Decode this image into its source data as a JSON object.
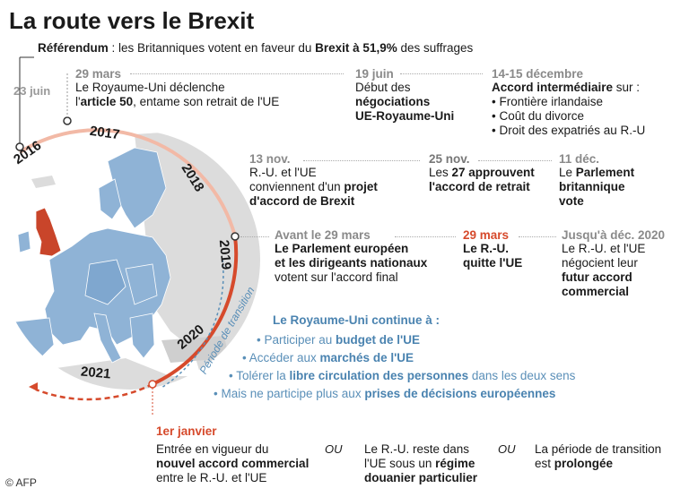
{
  "title": "La route vers le Brexit",
  "referendum": {
    "label": "Référendum",
    "text1": " : les Britanniques votent en faveur du ",
    "text2": "Brexit à 51,9%",
    "text3": " des suffrages",
    "date": "23 juin"
  },
  "years": [
    "2016",
    "2017",
    "2018",
    "2019",
    "2020",
    "2021"
  ],
  "transition_label": "Période de transition",
  "events_row1": [
    {
      "date": "29 mars",
      "line1": "Le Royaume-Uni déclenche",
      "line2_pre": "l'",
      "line2_bold": "article 50",
      "line2_post": ", entame son retrait de l'UE"
    },
    {
      "date": "19 juin",
      "line1": "Début des",
      "line2": "négociations",
      "line3": "UE-Royaume-Uni"
    },
    {
      "date": "14-15 décembre",
      "line1_bold": "Accord intermédiaire",
      "line1_post": " sur :",
      "bullets": [
        "Frontière irlandaise",
        "Coût du divorce",
        "Droit des expatriés au R.-U"
      ]
    }
  ],
  "events_row2": [
    {
      "date": "13 nov.",
      "line1": "R.-U. et l'UE",
      "line2_pre": "conviennent d'un ",
      "line2_bold": "projet",
      "line3": "d'accord de Brexit"
    },
    {
      "date": "25 nov.",
      "line1_pre": "Les ",
      "line1_bold": "27 approuvent",
      "line2": "l'accord de retrait"
    },
    {
      "date": "11 déc.",
      "line1_pre": "Le ",
      "line1_bold": "Parlement",
      "line2": "britannique",
      "line3": "vote"
    }
  ],
  "events_row3": [
    {
      "date": "Avant le 29 mars",
      "line1": "Le Parlement européen",
      "line2": "et les dirigeants nationaux",
      "line3": "votent sur l'accord final"
    },
    {
      "date": "29 mars",
      "line1": "Le R.-U.",
      "line2": "quitte l'UE"
    },
    {
      "date": "Jusqu'à déc. 2020",
      "line1": "Le R.-U. et l'UE",
      "line2": "négocient leur",
      "line3": "futur accord",
      "line4": "commercial"
    }
  ],
  "transition": {
    "header": "Le Royaume-Uni continue à :",
    "items": [
      {
        "pre": "Participer au ",
        "bold": "budget de l'UE",
        "post": ""
      },
      {
        "pre": "Accéder aux ",
        "bold": "marchés de l'UE",
        "post": ""
      },
      {
        "pre": "Tolérer la ",
        "bold": "libre circulation des personnes",
        "post": " dans les deux sens"
      },
      {
        "pre": "Mais ne participe plus aux ",
        "bold": "prises de décisions européennes",
        "post": ""
      }
    ]
  },
  "final": {
    "date": "1er janvier",
    "option1": {
      "line1": "Entrée en vigueur du",
      "line2": "nouvel accord commercial",
      "line3": "entre le R.-U. et l'UE"
    },
    "or_label": "OU",
    "option2": {
      "line1": "Le R.-U. reste dans",
      "line2_pre": "l'UE sous un ",
      "line2_bold": "régime",
      "line3": "douanier particulier"
    },
    "option3": {
      "line1": "La période de transition",
      "line2_pre": "est ",
      "line2_bold": "prolongée"
    }
  },
  "credit": "© AFP",
  "colors": {
    "accent": "#d64a2c",
    "light_accent": "#f2b9a6",
    "blue": "#5a8fb8",
    "map_blue": "#8fb3d6",
    "map_grey": "#d9d9d9",
    "uk_red": "#c9452a"
  }
}
